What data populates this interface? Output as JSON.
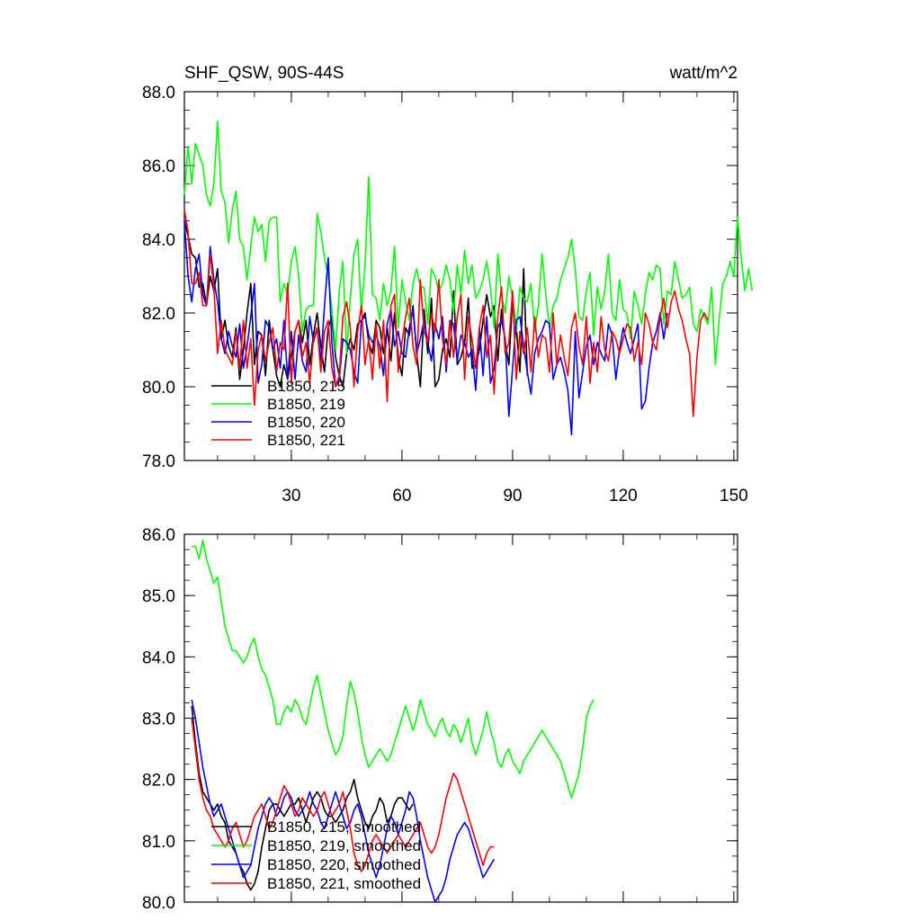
{
  "chart_data": [
    {
      "type": "line",
      "title": "SHF_QSW, 90S-44S",
      "units": "watt/m^2",
      "xlim": [
        1,
        151
      ],
      "ylim": [
        78.0,
        88.0
      ],
      "xticks": [
        30,
        60,
        90,
        120,
        150
      ],
      "xtick_labels": [
        "30",
        "60",
        "90",
        "120",
        "150"
      ],
      "yticks": [
        78,
        80,
        82,
        84,
        86,
        88
      ],
      "ytick_labels": [
        "78.0",
        "80.0",
        "82.0",
        "84.0",
        "86.0",
        "88.0"
      ],
      "legend_position": "lower-left",
      "series": [
        {
          "name": "B1850, 215",
          "color": "#000000",
          "x_start": 1,
          "values": [
            84.5,
            84.1,
            83.6,
            83.5,
            82.7,
            82.8,
            82.2,
            83.0,
            82.6,
            83.2,
            81.3,
            81.8,
            81.1,
            80.8,
            81.6,
            80.2,
            81.0,
            82.0,
            82.8,
            80.6,
            81.5,
            81.4,
            80.3,
            81.8,
            81.0,
            80.3,
            80.0,
            80.6,
            80.2,
            80.8,
            81.5,
            81.8,
            81.2,
            81.8,
            80.6,
            81.4,
            82.0,
            81.1,
            80.4,
            81.6,
            81.9,
            80.8,
            80.3,
            80.0,
            80.9,
            81.3,
            81.0,
            81.7,
            81.8,
            82.0,
            81.2,
            80.9,
            81.8,
            81.6,
            80.9,
            81.6,
            80.7,
            82.0,
            80.8,
            80.3,
            81.6,
            81.4,
            82.2,
            80.9,
            80.0,
            82.1,
            80.9,
            82.4,
            80.0,
            80.2,
            81.0,
            81.3,
            80.8,
            82.6,
            80.6,
            80.8,
            81.2,
            82.4,
            80.5,
            80.6,
            81.0,
            81.8,
            82.5,
            81.9,
            82.2,
            80.7,
            82.1,
            81.2,
            80.6,
            82.4,
            81.6,
            80.4,
            83.2,
            80.3
          ]
        },
        {
          "name": "B1850, 219",
          "color": "#00ff00",
          "x_start": 1,
          "values": [
            85.2,
            86.5,
            85.5,
            86.6,
            86.3,
            86.0,
            85.2,
            84.9,
            85.5,
            87.2,
            85.3,
            85.0,
            83.9,
            84.8,
            85.3,
            84.0,
            83.8,
            82.9,
            83.8,
            84.6,
            84.2,
            84.4,
            83.4,
            84.5,
            84.6,
            84.6,
            82.3,
            82.8,
            82.5,
            83.4,
            83.8,
            83.0,
            81.5,
            82.1,
            82.2,
            82.2,
            84.7,
            84.2,
            83.5,
            83.0,
            82.1,
            81.0,
            82.6,
            83.4,
            80.9,
            82.4,
            83.6,
            84.0,
            82.0,
            83.3,
            85.7,
            82.5,
            82.4,
            81.8,
            82.8,
            82.2,
            82.6,
            83.8,
            81.6,
            82.9,
            82.3,
            81.8,
            82.8,
            83.2,
            82.7,
            82.7,
            81.7,
            83.2,
            83.0,
            82.6,
            82.8,
            83.3,
            82.9,
            82.0,
            83.3,
            82.5,
            83.7,
            82.8,
            83.3,
            82.4,
            82.6,
            82.9,
            83.4,
            82.7,
            81.6,
            83.6,
            82.5,
            82.0,
            83.0,
            82.4,
            81.5,
            82.7,
            82.4,
            82.3,
            82.8,
            81.5,
            82.2,
            83.6,
            82.5,
            81.6,
            82.2,
            82.4,
            82.9,
            83.2,
            83.5,
            84.0,
            83.2,
            81.9,
            81.8,
            82.6,
            83.1,
            81.4,
            82.7,
            82.1,
            82.6,
            83.6,
            82.0,
            81.8,
            82.9,
            82.1,
            82.0,
            81.3,
            82.6,
            82.2,
            81.7,
            82.5,
            83.1,
            82.9,
            83.3,
            83.2,
            81.7,
            82.6,
            82.5,
            83.4,
            82.9,
            82.4,
            82.5,
            82.7,
            81.7,
            81.5,
            82.1,
            81.9,
            81.7,
            82.7,
            80.6,
            81.8,
            82.8,
            83.0,
            83.4,
            83.0,
            84.6,
            83.5,
            82.6,
            83.2,
            82.6
          ]
        },
        {
          "name": "B1850, 220",
          "color": "#0000ff",
          "x_start": 1,
          "values": [
            84.5,
            83.0,
            82.3,
            83.2,
            83.6,
            82.5,
            82.2,
            83.8,
            82.9,
            82.3,
            81.3,
            80.9,
            81.5,
            81.1,
            80.8,
            81.7,
            80.5,
            81.1,
            81.9,
            82.8,
            80.1,
            80.6,
            81.8,
            81.6,
            81.0,
            81.3,
            80.5,
            81.8,
            80.2,
            81.5,
            80.2,
            81.4,
            80.7,
            80.4,
            81.9,
            81.2,
            81.6,
            80.7,
            82.2,
            83.5,
            81.2,
            80.0,
            80.2,
            81.3,
            81.2,
            81.0,
            80.4,
            80.1,
            81.8,
            81.9,
            81.4,
            81.2,
            81.4,
            81.1,
            80.3,
            81.7,
            82.1,
            81.1,
            81.5,
            80.9,
            80.8,
            81.6,
            82.1,
            80.9,
            81.3,
            81.8,
            81.2,
            80.7,
            81.7,
            81.3,
            81.9,
            80.4,
            81.8,
            81.7,
            80.7,
            81.4,
            81.2,
            80.8,
            81.0,
            79.9,
            81.6,
            80.3,
            81.9,
            80.1,
            80.5,
            81.6,
            81.8,
            81.3,
            79.2,
            80.5,
            81.8,
            81.9,
            81.1,
            80.4,
            79.8,
            80.9,
            81.3,
            81.5,
            81.8,
            81.7,
            80.2,
            80.6,
            80.8,
            80.4,
            79.9,
            78.7,
            81.5,
            79.7,
            80.4,
            81.1,
            81.4,
            80.6,
            81.2,
            80.9,
            80.7,
            81.7,
            81.4,
            80.2,
            81.0,
            81.6,
            81.2,
            80.9,
            81.3,
            81.7,
            79.4,
            79.6,
            80.5,
            81.2,
            81.5,
            82.0,
            81.3,
            82.0
          ]
        },
        {
          "name": "B1850, 221",
          "color": "#ff0000",
          "x_start": 1,
          "values": [
            84.8,
            84.2,
            82.8,
            82.8,
            83.1,
            82.2,
            82.2,
            83.6,
            82.7,
            80.9,
            81.8,
            81.0,
            80.8,
            80.6,
            81.5,
            80.5,
            81.8,
            80.5,
            81.3,
            79.5,
            81.0,
            81.4,
            80.7,
            81.2,
            81.6,
            80.4,
            81.2,
            81.0,
            82.8,
            80.1,
            81.5,
            81.8,
            80.8,
            81.2,
            80.1,
            81.3,
            81.6,
            80.4,
            81.5,
            81.8,
            80.5,
            80.0,
            80.3,
            81.9,
            82.3,
            81.6,
            80.0,
            81.5,
            82.2,
            80.6,
            81.3,
            80.2,
            81.7,
            80.5,
            81.8,
            79.6,
            82.2,
            82.5,
            80.4,
            81.2,
            81.9,
            82.4,
            81.1,
            80.6,
            82.9,
            81.5,
            81.2,
            82.0,
            81.5,
            82.9,
            81.3,
            80.6,
            81.8,
            80.8,
            81.9,
            82.5,
            80.2,
            81.9,
            81.3,
            80.5,
            81.6,
            82.2,
            80.8,
            81.4,
            79.8,
            81.9,
            82.7,
            80.9,
            81.2,
            82.6,
            80.2,
            81.5,
            80.9,
            81.6,
            80.4,
            81.9,
            80.8,
            81.4,
            81.3,
            80.4,
            82.0,
            80.6,
            81.4,
            80.8,
            80.3,
            81.6,
            82.0,
            81.1,
            80.6,
            81.9,
            80.1,
            81.2,
            80.4,
            81.9,
            81.0,
            80.7,
            81.5,
            81.3,
            80.9,
            81.3,
            81.7,
            81.6,
            80.7,
            81.2,
            80.6,
            82.0,
            81.7,
            81.2,
            81.0,
            81.9,
            82.4,
            81.6,
            82.3,
            82.6,
            82.1,
            81.8,
            81.3,
            80.9,
            79.2,
            80.8,
            81.8,
            82.0,
            81.8
          ]
        }
      ]
    },
    {
      "type": "line",
      "ylim": [
        80.0,
        86.0
      ],
      "xlim": [
        1,
        151
      ],
      "yticks": [
        80,
        81,
        82,
        83,
        84,
        85,
        86
      ],
      "ytick_labels": [
        "80.0",
        "81.0",
        "82.0",
        "83.0",
        "84.0",
        "85.0",
        "86.0"
      ],
      "xticks": [
        30,
        60,
        90,
        120,
        150
      ],
      "legend_position": "lower-left",
      "series": [
        {
          "name": "B1850, 215, smoothed",
          "color": "#000000",
          "x_start": 3,
          "values": [
            83.2,
            82.6,
            82.1,
            81.8,
            81.7,
            81.6,
            81.5,
            81.6,
            81.4,
            81.3,
            81.0,
            80.9,
            80.8,
            80.6,
            80.5,
            80.3,
            80.2,
            80.3,
            80.5,
            80.9,
            81.2,
            81.5,
            81.6,
            81.6,
            81.5,
            81.4,
            81.5,
            81.6,
            81.6,
            81.7,
            81.5,
            81.3,
            81.5,
            81.7,
            81.8,
            81.7,
            81.5,
            81.4,
            81.4,
            81.3,
            81.4,
            81.5,
            81.7,
            81.8,
            82.0,
            81.7,
            81.5,
            81.3,
            81.2,
            81.4,
            81.5,
            81.7,
            81.6,
            81.3,
            81.4,
            81.6,
            81.7,
            81.7,
            81.6,
            81.5,
            81.6
          ]
        },
        {
          "name": "B1850, 219, smoothed",
          "color": "#00ff00",
          "x_start": 3,
          "values": [
            85.8,
            85.8,
            85.6,
            85.9,
            85.6,
            85.4,
            85.2,
            85.3,
            84.9,
            84.5,
            84.3,
            84.1,
            84.1,
            84.0,
            83.9,
            84.0,
            84.2,
            84.3,
            84.0,
            83.8,
            83.7,
            83.5,
            83.3,
            82.9,
            82.9,
            83.1,
            83.2,
            83.1,
            83.3,
            83.2,
            83.0,
            82.9,
            83.2,
            83.5,
            83.7,
            83.4,
            83.1,
            82.8,
            82.6,
            82.4,
            82.5,
            82.7,
            83.2,
            83.6,
            83.4,
            83.1,
            82.7,
            82.4,
            82.2,
            82.3,
            82.4,
            82.5,
            82.4,
            82.3,
            82.4,
            82.6,
            82.8,
            83.0,
            83.2,
            83.0,
            82.8,
            83.0,
            83.3,
            83.1,
            82.9,
            82.8,
            82.7,
            82.9,
            83.0,
            82.8,
            82.7,
            82.9,
            82.8,
            82.6,
            82.8,
            83.0,
            82.6,
            82.4,
            82.6,
            82.8,
            83.1,
            82.8,
            82.6,
            82.3,
            82.2,
            82.4,
            82.5,
            82.3,
            82.2,
            82.1,
            82.3,
            82.4,
            82.5,
            82.6,
            82.7,
            82.8,
            82.7,
            82.6,
            82.5,
            82.4,
            82.3,
            82.1,
            81.9,
            81.7,
            81.9,
            82.1,
            82.5,
            83.0,
            83.2,
            83.3
          ]
        },
        {
          "name": "B1850, 220, smoothed",
          "color": "#0000ff",
          "x_start": 3,
          "values": [
            83.3,
            83.0,
            82.6,
            82.2,
            81.9,
            81.6,
            81.4,
            81.5,
            81.6,
            81.4,
            81.2,
            81.0,
            80.8,
            80.6,
            80.4,
            80.5,
            80.6,
            80.9,
            81.2,
            81.4,
            81.6,
            81.7,
            81.6,
            81.4,
            81.5,
            81.7,
            81.8,
            81.7,
            81.5,
            81.4,
            81.5,
            81.6,
            81.8,
            81.6,
            81.5,
            81.3,
            81.2,
            81.4,
            81.6,
            81.8,
            81.6,
            81.4,
            81.2,
            81.3,
            81.5,
            81.6,
            81.4,
            81.1,
            80.8,
            80.6,
            80.4,
            80.6,
            80.9,
            81.2,
            81.4,
            81.3,
            81.1,
            81.3,
            81.5,
            81.8,
            81.7,
            81.4,
            81.0,
            80.7,
            80.4,
            80.2,
            80.0,
            80.1,
            80.2,
            80.4,
            80.7,
            80.9,
            81.1,
            81.2,
            81.3,
            81.2,
            81.0,
            80.8,
            80.6,
            80.4,
            80.5,
            80.6,
            80.7
          ]
        },
        {
          "name": "B1850, 221, smoothed",
          "color": "#ff0000",
          "x_start": 3,
          "values": [
            83.0,
            82.5,
            82.0,
            81.7,
            81.5,
            81.4,
            81.2,
            81.1,
            81.0,
            80.9,
            81.0,
            81.2,
            81.3,
            81.1,
            80.9,
            81.0,
            81.2,
            81.4,
            81.5,
            81.6,
            81.4,
            81.2,
            81.3,
            81.5,
            81.7,
            81.9,
            81.8,
            81.6,
            81.4,
            81.5,
            81.7,
            81.6,
            81.5,
            81.4,
            81.5,
            81.7,
            81.8,
            81.6,
            81.4,
            81.5,
            81.6,
            81.8,
            81.5,
            81.2,
            80.8,
            80.6,
            80.5,
            80.6,
            80.8,
            81.0,
            81.1,
            81.0,
            80.9,
            80.8,
            80.9,
            81.0,
            81.1,
            81.0,
            80.9,
            81.0,
            81.1,
            81.2,
            81.3,
            81.1,
            80.9,
            80.8,
            80.9,
            81.1,
            81.4,
            81.7,
            81.9,
            82.1,
            82.0,
            81.8,
            81.6,
            81.4,
            81.2,
            81.0,
            80.8,
            80.6,
            80.8,
            80.9,
            80.9
          ]
        }
      ]
    }
  ]
}
